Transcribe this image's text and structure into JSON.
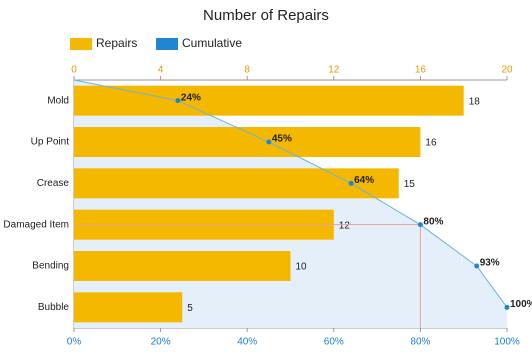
{
  "chart_data": {
    "type": "pareto",
    "title": "Number of Repairs",
    "categories": [
      "Mold",
      "Up Point",
      "Crease",
      "Damaged Item",
      "Bending",
      "Bubble"
    ],
    "series": [
      {
        "name": "Repairs",
        "color": "#f5b800",
        "values": [
          18,
          16,
          15,
          12,
          10,
          5
        ]
      },
      {
        "name": "Cumulative",
        "color": "#1f86d0",
        "axis": "x2",
        "values": [
          24,
          45,
          64,
          80,
          93,
          100
        ],
        "value_labels": [
          "24%",
          "45%",
          "64%",
          "80%",
          "93%",
          "100%"
        ]
      }
    ],
    "xlim": [
      0,
      20
    ],
    "xticks": [
      0,
      4,
      8,
      12,
      16,
      20
    ],
    "x2lim": [
      0,
      100
    ],
    "x2ticks": [
      {
        "value": 0,
        "label": "0%"
      },
      {
        "value": 20,
        "label": "20%"
      },
      {
        "value": 40,
        "label": "40%"
      },
      {
        "value": 60,
        "label": "60%"
      },
      {
        "value": 80,
        "label": "80%"
      },
      {
        "value": 100,
        "label": "100%"
      }
    ]
  }
}
